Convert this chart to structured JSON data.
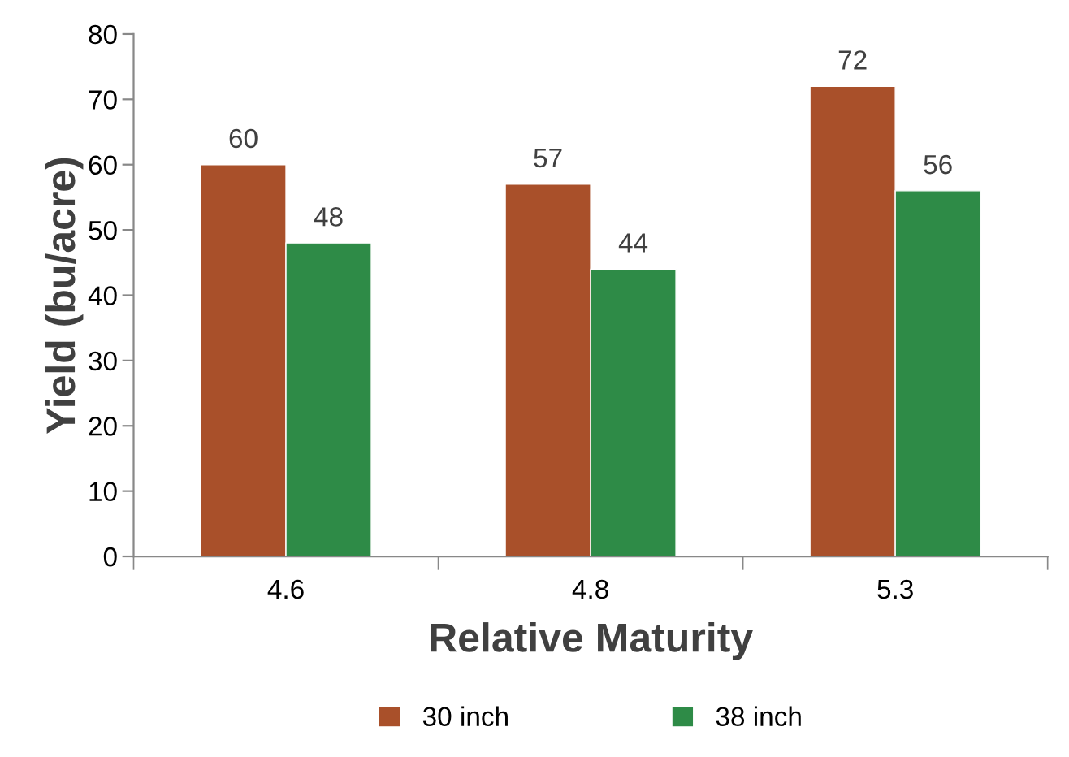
{
  "chart_data": {
    "type": "bar",
    "xlabel": "Relative Maturity",
    "ylabel": "Yield (bu/acre)",
    "categories": [
      "4.6",
      "4.8",
      "5.3"
    ],
    "series": [
      {
        "name": "30 inch",
        "color": "#a9502a",
        "values": [
          60,
          57,
          72
        ]
      },
      {
        "name": "38 inch",
        "color": "#2e8b47",
        "values": [
          48,
          44,
          56
        ]
      }
    ],
    "ylim": [
      0,
      80
    ],
    "yticks": [
      0,
      10,
      20,
      30,
      40,
      50,
      60,
      70,
      80
    ],
    "grid": false,
    "legend": "bottom",
    "data_labels": true
  }
}
